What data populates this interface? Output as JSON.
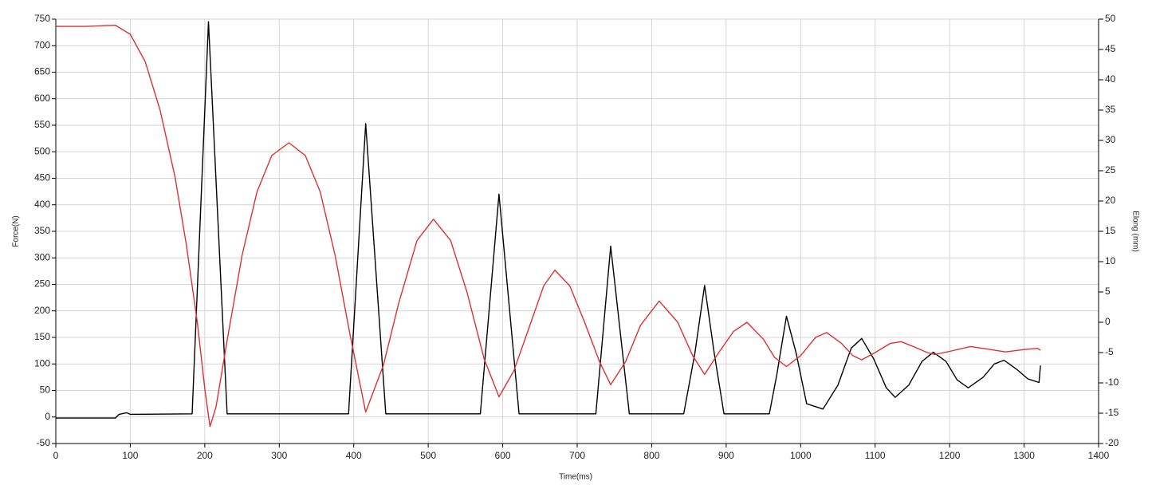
{
  "chart_data": {
    "type": "line",
    "x_label": "Time(ms)",
    "y_label": "Force(N)",
    "y2_label": "Elong (mm)",
    "xlim": [
      0,
      1400
    ],
    "xticks": [
      0,
      100,
      200,
      300,
      400,
      500,
      600,
      700,
      800,
      900,
      1000,
      1100,
      1200,
      1300,
      1400
    ],
    "ylim": [
      -50,
      750
    ],
    "yticks": [
      -50,
      0,
      50,
      100,
      150,
      200,
      250,
      300,
      350,
      400,
      450,
      500,
      550,
      600,
      650,
      700,
      750
    ],
    "y2lim": [
      -20,
      50
    ],
    "y2ticks": [
      -20,
      -15,
      -10,
      -5,
      0,
      5,
      10,
      15,
      20,
      25,
      30,
      35,
      40,
      45,
      50
    ],
    "grid": true,
    "series": [
      {
        "name": "Force",
        "color": "#000000",
        "x": [
          0,
          80,
          85,
          95,
          100,
          183,
          205,
          230,
          393,
          416,
          443,
          570,
          595,
          622,
          725,
          745,
          770,
          843,
          858,
          871,
          884,
          897,
          958,
          968,
          981,
          994,
          1008,
          1030,
          1050,
          1068,
          1082,
          1098,
          1115,
          1127,
          1145,
          1163,
          1178,
          1195,
          1210,
          1225,
          1245,
          1260,
          1273,
          1290,
          1305,
          1320,
          1322
        ],
        "values": [
          -2,
          -2,
          5,
          8,
          5,
          6,
          745,
          6,
          6,
          553,
          6,
          6,
          420,
          6,
          6,
          322,
          6,
          6,
          120,
          248,
          120,
          6,
          6,
          80,
          190,
          120,
          25,
          15,
          60,
          130,
          148,
          110,
          55,
          37,
          60,
          105,
          122,
          105,
          70,
          55,
          75,
          100,
          107,
          90,
          72,
          65,
          97
        ]
      },
      {
        "name": "Elong",
        "color": "#e03030",
        "axis": "y2",
        "x": [
          0,
          40,
          80,
          100,
          120,
          140,
          160,
          175,
          190,
          200,
          207,
          215,
          230,
          250,
          270,
          290,
          313,
          335,
          355,
          375,
          395,
          416,
          440,
          460,
          485,
          507,
          530,
          552,
          575,
          595,
          615,
          635,
          655,
          670,
          690,
          710,
          730,
          745,
          765,
          785,
          810,
          835,
          855,
          871,
          890,
          910,
          928,
          950,
          965,
          981,
          1000,
          1020,
          1035,
          1055,
          1070,
          1082,
          1100,
          1120,
          1135,
          1155,
          1170,
          1180,
          1200,
          1228,
          1250,
          1275,
          1300,
          1318,
          1322
        ],
        "values": [
          48.8,
          48.8,
          49,
          47.5,
          43,
          35,
          24,
          13,
          0,
          -11,
          -17.2,
          -14,
          -3,
          11,
          21.5,
          27.5,
          29.6,
          27.5,
          21.5,
          11,
          -2,
          -14.8,
          -7,
          3,
          13.5,
          17,
          13.5,
          5,
          -6,
          -12.3,
          -8,
          -1,
          6,
          8.6,
          6,
          0,
          -6.5,
          -10.3,
          -6.5,
          -0.5,
          3.5,
          0,
          -5.5,
          -8.6,
          -5,
          -1.5,
          0,
          -2.8,
          -5.8,
          -7.3,
          -5.5,
          -2.5,
          -1.7,
          -3.5,
          -5.5,
          -6.2,
          -5,
          -3.5,
          -3.2,
          -4.2,
          -5,
          -5.3,
          -4.8,
          -4,
          -4.4,
          -4.9,
          -4.5,
          -4.3,
          -4.6
        ]
      }
    ]
  }
}
